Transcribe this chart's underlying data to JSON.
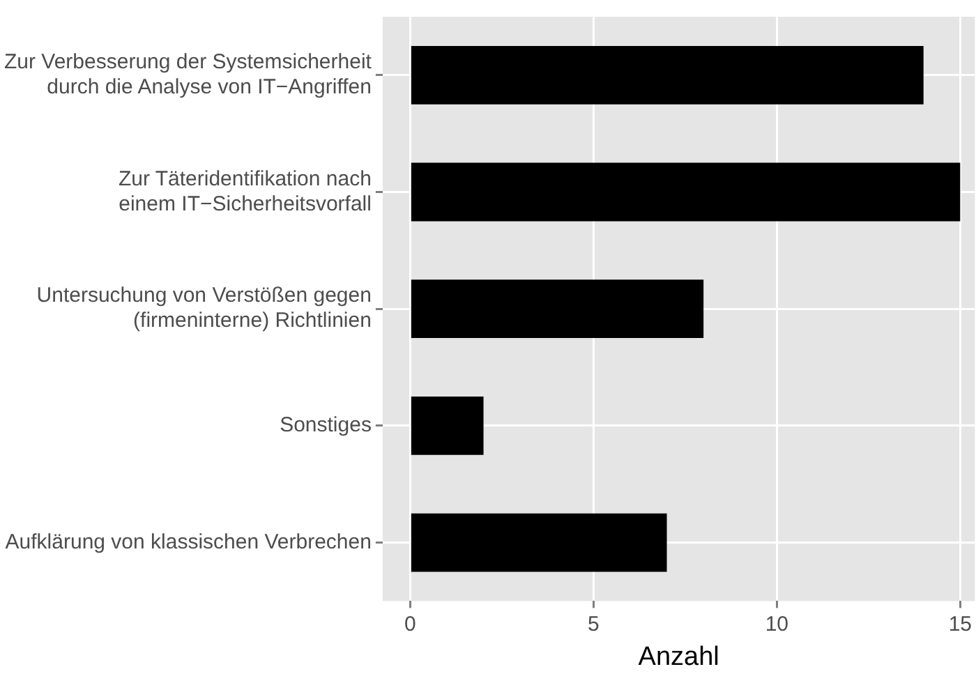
{
  "chart_data": {
    "type": "bar",
    "orientation": "horizontal",
    "xlabel": "Anzahl",
    "categories": [
      "Zur Verbesserung der Systemsicherheit\ndurch die Analyse von IT−Angriffen",
      "Zur Täteridentifikation nach\neinem IT−Sicherheitsvorfall",
      "Untersuchung von Verstößen gegen\n(firmeninterne) Richtlinien",
      "Sonstiges",
      "Aufklärung von klassischen Verbrechen"
    ],
    "values": [
      14,
      15,
      8,
      2,
      7
    ],
    "color": "#000000",
    "xlim": [
      -0.75,
      15.4
    ],
    "xticks": [
      0,
      5,
      10,
      15
    ],
    "grid": true
  }
}
